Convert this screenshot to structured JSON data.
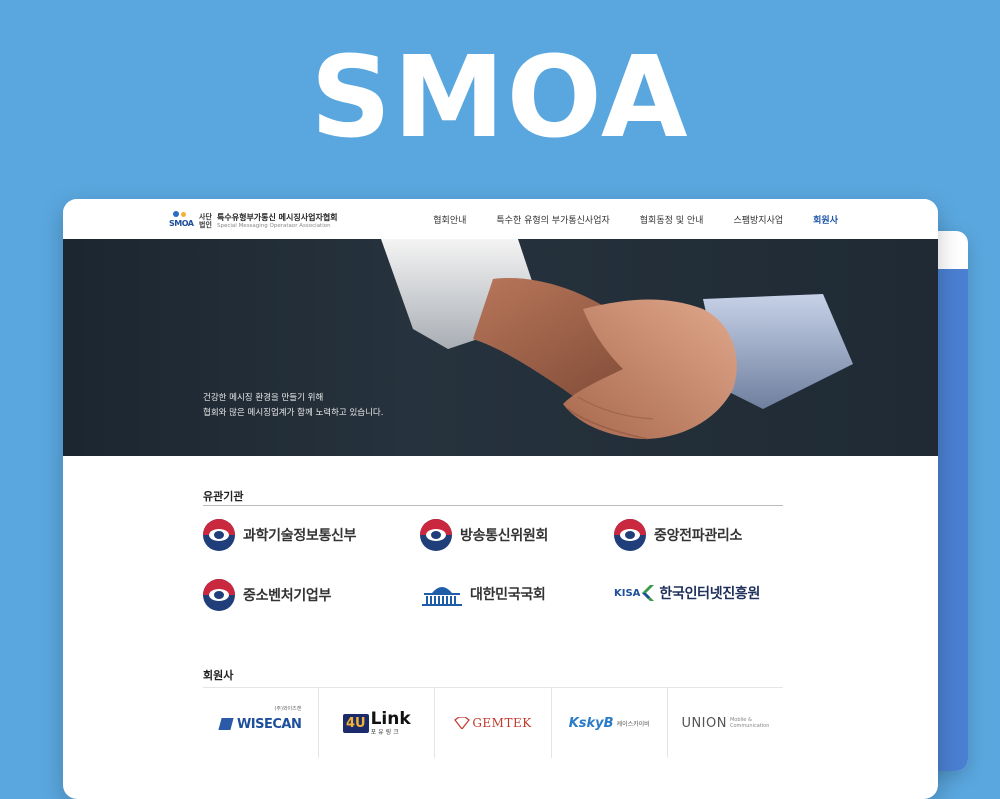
{
  "hero": {
    "title": "SMOA"
  },
  "header": {
    "logo": {
      "mark": "SMOA",
      "prefix_top": "사단",
      "prefix_bottom": "법인",
      "name_ko": "특수유형부가통신 메시징사업자협회",
      "name_en": "Special Messaging Operataor Association"
    },
    "nav": [
      {
        "label": "협회안내",
        "active": false
      },
      {
        "label": "특수한 유형의 부가통신사업자",
        "active": false
      },
      {
        "label": "협회동정 및 안내",
        "active": false
      },
      {
        "label": "스팸방지사업",
        "active": false
      },
      {
        "label": "회원사",
        "active": true
      }
    ]
  },
  "banner": {
    "line1": "건강한 메시징 환경을 만들기 위해",
    "line2": "협회와 많은 메시징업계가 함께 노력하고 있습니다."
  },
  "related": {
    "title": "유관기관",
    "orgs": [
      {
        "name": "과학기술정보통신부",
        "icon": "gov-emblem-icon"
      },
      {
        "name": "방송통신위원회",
        "icon": "gov-emblem-icon"
      },
      {
        "name": "중앙전파관리소",
        "icon": "gov-emblem-icon"
      },
      {
        "name": "중소벤처기업부",
        "icon": "gov-emblem-icon"
      },
      {
        "name": "대한민국국회",
        "icon": "national-assembly-icon"
      },
      {
        "name": "한국인터넷진흥원",
        "icon": "kisa-logo-icon",
        "prefix": "KISA"
      }
    ]
  },
  "members": {
    "title": "회원사",
    "logos": [
      {
        "name": "WISECAN",
        "sub": "(주)와이즈캔"
      },
      {
        "name": "Link",
        "prefix": "4U",
        "sub": "포유링크"
      },
      {
        "name": "GEMTEK"
      },
      {
        "name": "KskyB",
        "sub": "케이스카이비"
      },
      {
        "name": "UNION",
        "sub1": "Mobile &",
        "sub2": "Communication"
      }
    ]
  },
  "colors": {
    "background": "#5aa7df",
    "accent_blue": "#1e56a8",
    "gov_red": "#c9283e",
    "gov_blue": "#1f3e7a"
  }
}
